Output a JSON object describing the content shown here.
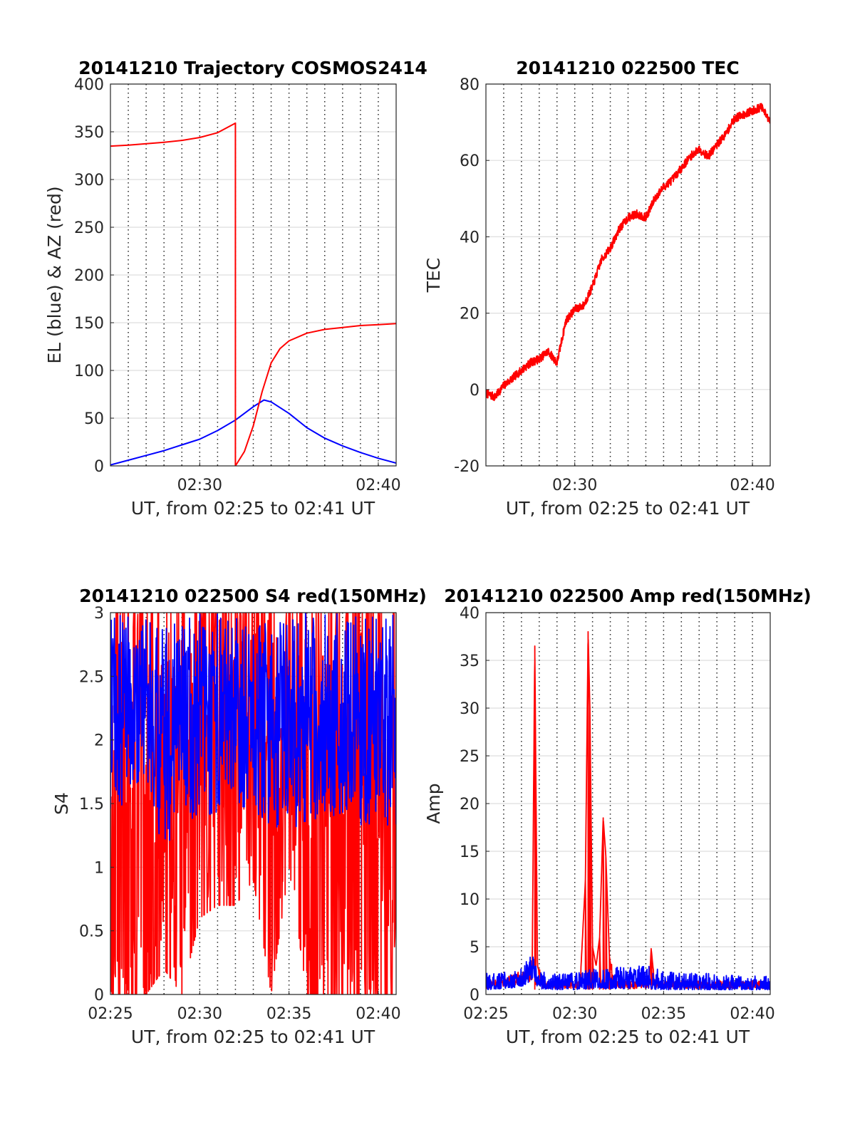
{
  "chart_data": [
    {
      "type": "line",
      "title": "20141210 Trajectory COSMOS2414",
      "xlabel": "UT, from 02:25 to 02:41 UT",
      "ylabel": "EL (blue) & AZ (red)",
      "xlim": [
        "02:25",
        "02:41"
      ],
      "ylim": [
        0,
        400
      ],
      "xticks": [
        "02:30",
        "02:40"
      ],
      "yticks": [
        0,
        50,
        100,
        150,
        200,
        250,
        300,
        350,
        400
      ],
      "grid": "dotted vertical every minute, solid horizontal at y ticks",
      "series": [
        {
          "color": "#0000ff",
          "x": [
            "02:25",
            "02:26",
            "02:27",
            "02:28",
            "02:29",
            "02:30",
            "02:31",
            "02:32",
            "02:33",
            "02:33.6",
            "02:34",
            "02:35",
            "02:36",
            "02:37",
            "02:38",
            "02:39",
            "02:40",
            "02:41"
          ],
          "y": [
            1,
            6,
            11,
            16,
            22,
            28,
            37,
            48,
            62,
            69,
            67,
            55,
            40,
            29,
            21,
            14,
            8,
            3
          ]
        },
        {
          "color": "#ff0000",
          "x": [
            "02:25",
            "02:26",
            "02:27",
            "02:28",
            "02:29",
            "02:30",
            "02:31",
            "02:32",
            "02:32",
            "02:32.5",
            "02:33",
            "02:33.5",
            "02:34",
            "02:34.5",
            "02:35",
            "02:36",
            "02:37",
            "02:38",
            "02:39",
            "02:40",
            "02:41"
          ],
          "y": [
            335,
            336,
            337.5,
            339,
            341,
            344,
            349,
            359,
            0,
            15,
            42,
            78,
            108,
            123,
            131,
            139,
            143,
            145,
            147,
            148,
            149
          ]
        }
      ]
    },
    {
      "type": "line",
      "title": "20141210 022500 TEC",
      "xlabel": "UT, from 02:25 to 02:41 UT",
      "ylabel": "TEC",
      "xlim": [
        "02:25",
        "02:41"
      ],
      "ylim": [
        -20,
        80
      ],
      "xticks": [
        "02:30",
        "02:40"
      ],
      "yticks": [
        -20,
        0,
        20,
        40,
        60,
        80
      ],
      "grid": "dotted vertical every minute, solid horizontal at y ticks",
      "series": [
        {
          "color": "#ff0000",
          "x": [
            "02:25",
            "02:25.5",
            "02:26",
            "02:26.5",
            "02:27",
            "02:27.5",
            "02:28",
            "02:28.5",
            "02:29",
            "02:29.5",
            "02:30",
            "02:30.5",
            "02:31",
            "02:31.5",
            "02:32",
            "02:32.5",
            "02:33",
            "02:33.5",
            "02:34",
            "02:34.5",
            "02:35",
            "02:35.5",
            "02:36",
            "02:36.5",
            "02:37",
            "02:37.5",
            "02:38",
            "02:38.5",
            "02:39",
            "02:39.5",
            "02:40",
            "02:40.5",
            "02:41"
          ],
          "y": [
            -1,
            -2,
            1,
            3,
            5,
            7,
            8,
            10,
            7,
            18,
            21,
            22,
            27,
            34,
            37,
            42,
            45,
            46,
            45,
            50,
            53,
            55,
            58,
            61,
            63,
            61,
            64,
            67,
            71,
            72,
            73,
            74,
            70
          ]
        }
      ]
    },
    {
      "type": "line",
      "title": "20141210 022500 S4 red(150MHz)",
      "xlabel": "UT, from 02:25 to 02:41 UT",
      "ylabel": "S4",
      "xlim": [
        "02:25",
        "02:41"
      ],
      "ylim": [
        0,
        3
      ],
      "xticks": [
        "02:25",
        "02:30",
        "02:35",
        "02:40"
      ],
      "yticks": [
        0,
        0.5,
        1,
        1.5,
        2,
        2.5,
        3
      ],
      "grid": "dotted vertical every minute, solid horizontal at y ticks",
      "series": [
        {
          "color": "#ff0000",
          "x": [
            "02:25",
            "02:26",
            "02:27",
            "02:28",
            "02:29",
            "02:30",
            "02:31",
            "02:32",
            "02:33",
            "02:34",
            "02:35",
            "02:36",
            "02:37",
            "02:38",
            "02:39",
            "02:40",
            "02:41"
          ],
          "y_min": [
            0,
            0,
            0,
            0.2,
            0,
            0.6,
            0.7,
            0.7,
            0.9,
            0,
            1.0,
            0,
            0,
            0,
            0,
            0,
            0
          ],
          "y_max": [
            3,
            3,
            3,
            3,
            3,
            3,
            3,
            3,
            3,
            3,
            3,
            3,
            3,
            3,
            3,
            3,
            3
          ]
        },
        {
          "color": "#0000ff",
          "x": [
            "02:25",
            "02:26",
            "02:27",
            "02:28",
            "02:29",
            "02:30",
            "02:31",
            "02:32",
            "02:33",
            "02:34",
            "02:35",
            "02:36",
            "02:37",
            "02:38",
            "02:39",
            "02:40",
            "02:41"
          ],
          "y_min": [
            1.4,
            1.5,
            1.6,
            1.0,
            1.4,
            1.3,
            1.4,
            1.5,
            1.4,
            1.3,
            1.3,
            1.3,
            1.4,
            1.4,
            1.3,
            1.3,
            1.3
          ],
          "y_max": [
            3,
            3,
            3,
            2.9,
            3,
            3,
            3,
            3,
            3,
            3,
            3,
            3,
            3,
            3,
            3,
            3,
            3
          ]
        }
      ]
    },
    {
      "type": "line",
      "title": "20141210 022500 Amp red(150MHz)",
      "xlabel": "UT, from 02:25 to 02:41 UT",
      "ylabel": "Amp",
      "xlim": [
        "02:25",
        "02:41"
      ],
      "ylim": [
        0,
        40
      ],
      "xticks": [
        "02:25",
        "02:30",
        "02:35",
        "02:40"
      ],
      "yticks": [
        0,
        5,
        10,
        15,
        20,
        25,
        30,
        35,
        40
      ],
      "grid": "dotted vertical every minute, solid horizontal at y ticks",
      "series": [
        {
          "color": "#ff0000",
          "x": [
            "02:25",
            "02:27.6",
            "02:27.75",
            "02:27.9",
            "02:28.2",
            "02:30.3",
            "02:30.6",
            "02:30.75",
            "02:30.85",
            "02:31",
            "02:31.2",
            "02:31.4",
            "02:31.6",
            "02:31.75",
            "02:31.95",
            "02:32.1",
            "02:32.3",
            "02:34.2",
            "02:34.3",
            "02:34.5",
            "02:41"
          ],
          "y": [
            1,
            2,
            36.5,
            3,
            1,
            1,
            12,
            38,
            30,
            5,
            3,
            6,
            18.5,
            14.5,
            4,
            2,
            1,
            1,
            4.8,
            1,
            1
          ]
        },
        {
          "color": "#0000ff",
          "x": [
            "02:25",
            "02:26",
            "02:27",
            "02:27.6",
            "02:28",
            "02:29",
            "02:30",
            "02:31",
            "02:32",
            "02:33",
            "02:34",
            "02:35",
            "02:36",
            "02:37",
            "02:38",
            "02:39",
            "02:40",
            "02:41"
          ],
          "y_min": [
            0.5,
            0.6,
            0.8,
            1.5,
            0.6,
            0.5,
            0.5,
            0.6,
            0.6,
            0.6,
            0.6,
            0.5,
            0.5,
            0.5,
            0.5,
            0.5,
            0.5,
            0.5
          ],
          "y_max": [
            2.2,
            2.4,
            2.8,
            4.3,
            2.5,
            2.1,
            2.3,
            2.7,
            3.0,
            2.8,
            3.1,
            2.5,
            2.2,
            2.4,
            2.1,
            2.0,
            2.0,
            1.9
          ]
        }
      ]
    }
  ]
}
